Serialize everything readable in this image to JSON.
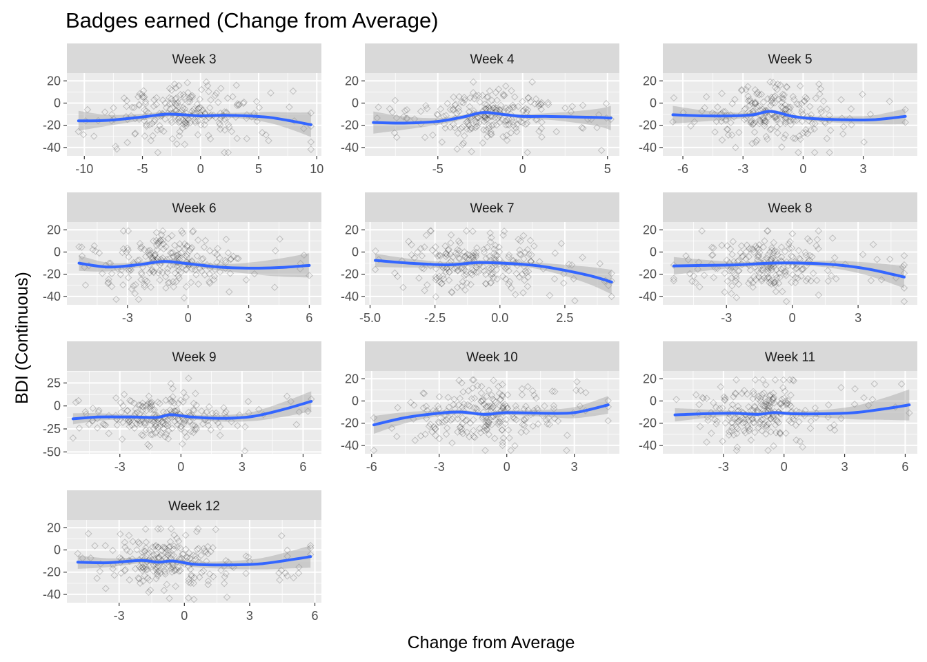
{
  "chart_data": {
    "type": "scatter",
    "title": "Badges earned (Change from Average)",
    "xlabel": "Change from Average",
    "ylabel": "BDI (Continuous)",
    "facet_layout": "wrap-3-columns",
    "grid": true,
    "point_shape": "open-diamond",
    "colors": {
      "panel_bg": "#ebebeb",
      "grid_major": "#ffffff",
      "strip_bg": "#d9d9d9",
      "points": "#000000",
      "smooth_line": "#3366ff",
      "ribbon": "#999999"
    },
    "panels": [
      {
        "label": "Week 3",
        "xlim": [
          -11.5,
          10.4
        ],
        "ylim": [
          -47.5,
          27
        ],
        "xticks": [
          -10,
          -5,
          0,
          5,
          10
        ],
        "yticks": [
          -40,
          -20,
          0,
          20
        ],
        "scatter_center": -1.5,
        "scatter_spread": 3.0,
        "smooth": {
          "x": [
            -10.5,
            -8,
            -5,
            -3,
            -1.5,
            0,
            2,
            4,
            6,
            8,
            9.5
          ],
          "y": [
            -16,
            -15.5,
            -12.5,
            -10,
            -10.5,
            -11.5,
            -11,
            -11.5,
            -13,
            -16.5,
            -19.5
          ]
        },
        "ribbon_halfwidth": [
          9,
          5,
          3,
          2,
          1.5,
          1.5,
          2,
          3,
          5,
          8,
          11
        ]
      },
      {
        "label": "Week 4",
        "xlim": [
          -9.3,
          5.7
        ],
        "ylim": [
          -47.5,
          27
        ],
        "xticks": [
          -5,
          0,
          5
        ],
        "yticks": [
          -40,
          -20,
          0,
          20
        ],
        "scatter_center": -1.8,
        "scatter_spread": 1.9,
        "smooth": {
          "x": [
            -8.8,
            -7,
            -5,
            -3.5,
            -2.3,
            -1,
            0,
            1.5,
            3,
            4.5,
            5.2
          ],
          "y": [
            -17.5,
            -18,
            -16.5,
            -12.5,
            -8.5,
            -10.5,
            -12,
            -12,
            -12.5,
            -13,
            -13.5
          ]
        },
        "ribbon_halfwidth": [
          10,
          6,
          3,
          2,
          1.5,
          1.5,
          2,
          3,
          5,
          8,
          11
        ]
      },
      {
        "label": "Week 5",
        "xlim": [
          -7.0,
          5.7
        ],
        "ylim": [
          -47.5,
          27
        ],
        "xticks": [
          -6,
          -3,
          0,
          3
        ],
        "yticks": [
          -40,
          -20,
          0,
          20
        ],
        "scatter_center": -1.4,
        "scatter_spread": 1.6,
        "smooth": {
          "x": [
            -6.5,
            -5,
            -3.5,
            -2.5,
            -1.6,
            -0.5,
            0.5,
            2,
            3.5,
            5.1
          ],
          "y": [
            -10.5,
            -11.5,
            -11.5,
            -10.5,
            -7.5,
            -12,
            -14,
            -15,
            -15,
            -12
          ]
        },
        "ribbon_halfwidth": [
          8,
          5,
          3,
          2,
          1.5,
          1.5,
          2,
          3,
          4,
          7
        ]
      },
      {
        "label": "Week 6",
        "xlim": [
          -6.0,
          6.6
        ],
        "ylim": [
          -47.5,
          27
        ],
        "xticks": [
          -3,
          0,
          3,
          6
        ],
        "yticks": [
          -40,
          -20,
          0,
          20
        ],
        "scatter_center": -1.1,
        "scatter_spread": 1.5,
        "smooth": {
          "x": [
            -5.4,
            -4,
            -2.5,
            -1.2,
            0,
            1.5,
            3,
            4.5,
            6
          ],
          "y": [
            -10,
            -13.5,
            -11.5,
            -8.5,
            -10.5,
            -13.5,
            -14.5,
            -14,
            -12
          ]
        },
        "ribbon_halfwidth": [
          7,
          4,
          2.5,
          2,
          2,
          3,
          5,
          8,
          11
        ]
      },
      {
        "label": "Week 7",
        "xlim": [
          -5.2,
          4.6
        ],
        "ylim": [
          -47.5,
          27
        ],
        "xticks": [
          -5.0,
          -2.5,
          0.0,
          2.5
        ],
        "yticks": [
          -40,
          -20,
          0,
          20
        ],
        "scatter_center": -0.8,
        "scatter_spread": 1.4,
        "smooth": {
          "x": [
            -4.8,
            -3.5,
            -2,
            -0.8,
            0.5,
            1.5,
            2.5,
            3.5,
            4.3
          ],
          "y": [
            -7.5,
            -10,
            -11.5,
            -9.5,
            -10.5,
            -12.5,
            -16.5,
            -21.5,
            -27
          ]
        },
        "ribbon_halfwidth": [
          6,
          4,
          2.5,
          2,
          2,
          3,
          5,
          8,
          11
        ]
      },
      {
        "label": "Week 8",
        "xlim": [
          -5.9,
          5.7
        ],
        "ylim": [
          -47.5,
          27
        ],
        "xticks": [
          -3,
          0,
          3
        ],
        "yticks": [
          -40,
          -20,
          0,
          20
        ],
        "scatter_center": -1.0,
        "scatter_spread": 1.4,
        "smooth": {
          "x": [
            -5.4,
            -4,
            -2.5,
            -1,
            0.5,
            2,
            3.5,
            5.1
          ],
          "y": [
            -12.5,
            -12,
            -11.5,
            -10,
            -10,
            -11.5,
            -15.5,
            -22.5
          ]
        },
        "ribbon_halfwidth": [
          8,
          5,
          2.5,
          1.5,
          2,
          3.5,
          6,
          10
        ]
      },
      {
        "label": "Week 9",
        "xlim": [
          -5.6,
          6.9
        ],
        "ylim": [
          -52,
          38
        ],
        "xticks": [
          -3,
          0,
          3,
          6
        ],
        "yticks": [
          -50,
          -25,
          0,
          25
        ],
        "scatter_center": -1.0,
        "scatter_spread": 1.5,
        "smooth": {
          "x": [
            -5.3,
            -4,
            -2.5,
            -1.2,
            -0.5,
            0.5,
            2,
            3.5,
            5,
            6.4
          ],
          "y": [
            -14,
            -12,
            -12,
            -12.5,
            -9.5,
            -12,
            -13.5,
            -11.5,
            -4,
            5
          ]
        },
        "ribbon_halfwidth": [
          6,
          4,
          2.5,
          2,
          2,
          2.5,
          3.5,
          5,
          8,
          11
        ]
      },
      {
        "label": "Week 10",
        "xlim": [
          -6.3,
          5.0
        ],
        "ylim": [
          -47.5,
          27
        ],
        "xticks": [
          -6,
          -3,
          0,
          3
        ],
        "yticks": [
          -40,
          -20,
          0,
          20
        ],
        "scatter_center": -1.0,
        "scatter_spread": 1.5,
        "smooth": {
          "x": [
            -5.9,
            -4.5,
            -3,
            -2,
            -1,
            0,
            1.5,
            3,
            4.5
          ],
          "y": [
            -21.5,
            -15,
            -11,
            -10,
            -12,
            -10.5,
            -11,
            -10.5,
            -3.5
          ]
        },
        "ribbon_halfwidth": [
          8,
          5,
          2.5,
          2,
          1.5,
          2,
          3,
          5,
          8
        ]
      },
      {
        "label": "Week 11",
        "xlim": [
          -6.0,
          6.6
        ],
        "ylim": [
          -47.5,
          27
        ],
        "xticks": [
          -3,
          0,
          3,
          6
        ],
        "yticks": [
          -40,
          -20,
          0,
          20
        ],
        "scatter_center": -1.2,
        "scatter_spread": 1.3,
        "smooth": {
          "x": [
            -5.4,
            -4,
            -2.5,
            -1.3,
            -0.5,
            0.5,
            2,
            3.5,
            5,
            6.2
          ],
          "y": [
            -12.5,
            -11.5,
            -11,
            -12,
            -10.5,
            -11.5,
            -11.5,
            -10.5,
            -7,
            -3.5
          ]
        },
        "ribbon_halfwidth": [
          6,
          4,
          2,
          1.5,
          1.5,
          2,
          3.5,
          6,
          10,
          14
        ]
      },
      {
        "label": "Week 12",
        "xlim": [
          -5.4,
          6.3
        ],
        "ylim": [
          -47.5,
          27
        ],
        "xticks": [
          -3,
          0,
          3,
          6
        ],
        "yticks": [
          -40,
          -20,
          0,
          20
        ],
        "scatter_center": -0.9,
        "scatter_spread": 1.3,
        "smooth": {
          "x": [
            -4.9,
            -3.5,
            -2,
            -1.2,
            -0.5,
            0.5,
            2,
            3.5,
            5,
            5.8
          ],
          "y": [
            -11,
            -11.5,
            -9.5,
            -11,
            -10,
            -13,
            -13.5,
            -12.5,
            -8.5,
            -6
          ]
        },
        "ribbon_halfwidth": [
          6,
          4,
          2.5,
          2,
          2,
          2.5,
          3.5,
          5,
          8,
          10
        ]
      }
    ]
  }
}
